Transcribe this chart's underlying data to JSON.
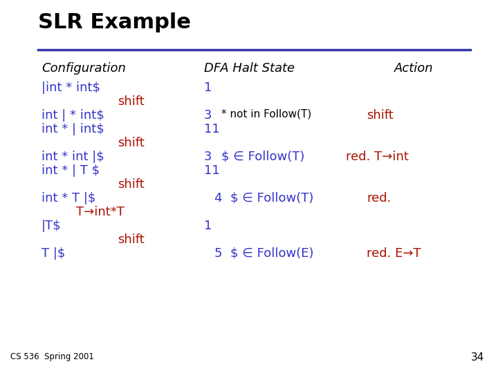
{
  "title": "SLR Example",
  "title_color": "#000000",
  "title_fontsize": 20,
  "bg_color": "#ffffff",
  "line_color": "#3333aa",
  "header_color": "#000000",
  "blue_color": "#3333cc",
  "red_color": "#aa1100",
  "black_color": "#000000",
  "footer_text": "CS 536  Spring 2001",
  "page_num": "34",
  "figsize": [
    7.2,
    5.4
  ],
  "dpi": 100
}
